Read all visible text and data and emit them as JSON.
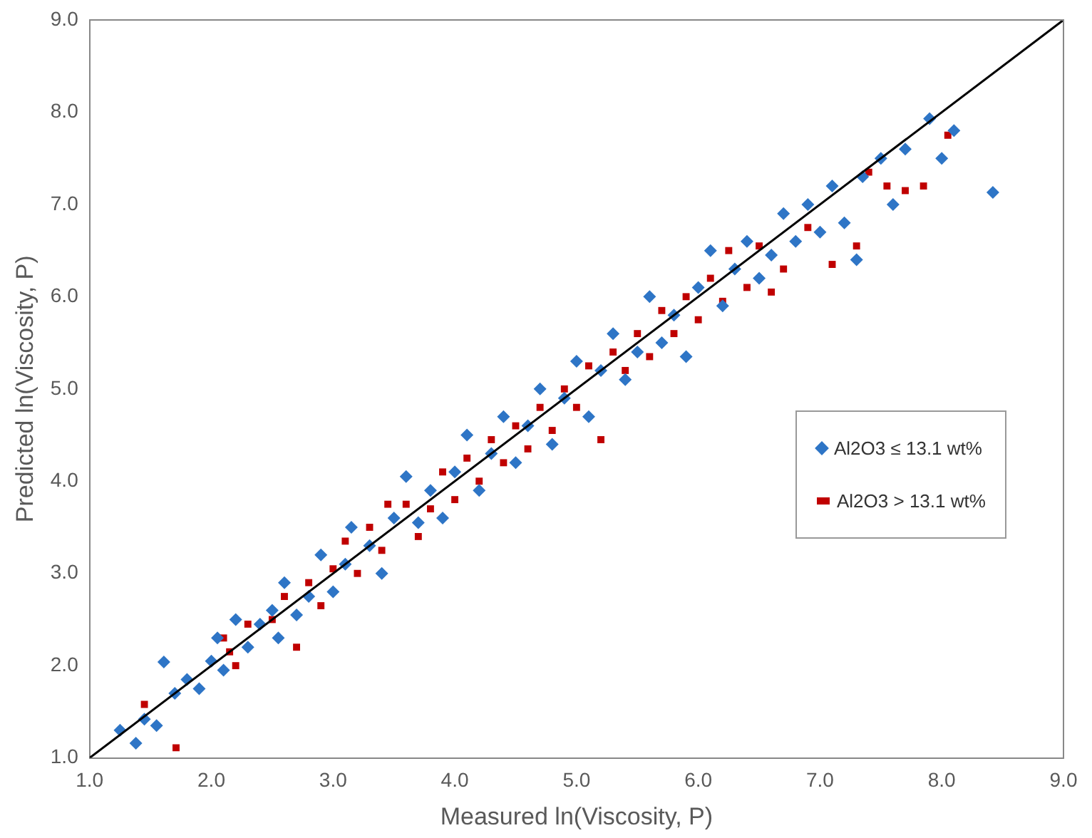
{
  "chart_data": {
    "type": "scatter",
    "xlabel": "Measured ln(Viscosity, P)",
    "ylabel": "Predicted ln(Viscosity, P)",
    "xlim": [
      1,
      9
    ],
    "ylim": [
      1,
      9
    ],
    "xticks": [
      {
        "value": 1,
        "label": "1.0"
      },
      {
        "value": 2,
        "label": "2.0"
      },
      {
        "value": 3,
        "label": "3.0"
      },
      {
        "value": 4,
        "label": "4.0"
      },
      {
        "value": 5,
        "label": "5.0"
      },
      {
        "value": 6,
        "label": "6.0"
      },
      {
        "value": 7,
        "label": "7.0"
      },
      {
        "value": 8,
        "label": "8.0"
      },
      {
        "value": 9,
        "label": "9.0"
      }
    ],
    "yticks": [
      {
        "value": 1,
        "label": "1.0"
      },
      {
        "value": 2,
        "label": "2.0"
      },
      {
        "value": 3,
        "label": "3.0"
      },
      {
        "value": 4,
        "label": "4.0"
      },
      {
        "value": 5,
        "label": "5.0"
      },
      {
        "value": 6,
        "label": "6.0"
      },
      {
        "value": 7,
        "label": "7.0"
      },
      {
        "value": 8,
        "label": "8.0"
      },
      {
        "value": 9,
        "label": "9.0"
      }
    ],
    "grid": false,
    "legend": "right",
    "series": [
      {
        "type": "line",
        "color": "#000000",
        "marker": "none",
        "x": [
          1,
          9
        ],
        "values": [
          1,
          9
        ]
      },
      {
        "name": "Al2O3 ≤ 13.1 wt%",
        "color": "#2e75c6",
        "marker": "diamond",
        "x": [
          1.25,
          1.38,
          1.45,
          1.55,
          1.61,
          1.7,
          1.8,
          1.9,
          2.0,
          2.05,
          2.1,
          2.2,
          2.3,
          2.4,
          2.5,
          2.55,
          2.6,
          2.7,
          2.8,
          2.9,
          3.0,
          3.1,
          3.15,
          3.3,
          3.4,
          3.5,
          3.6,
          3.7,
          3.8,
          3.9,
          4.0,
          4.1,
          4.2,
          4.3,
          4.4,
          4.5,
          4.6,
          4.7,
          4.8,
          4.9,
          5.0,
          5.1,
          5.2,
          5.3,
          5.4,
          5.5,
          5.6,
          5.7,
          5.8,
          5.9,
          6.0,
          6.1,
          6.2,
          6.3,
          6.4,
          6.5,
          6.6,
          6.7,
          6.8,
          6.9,
          7.0,
          7.1,
          7.2,
          7.3,
          7.35,
          7.5,
          7.6,
          7.7,
          7.9,
          8.0,
          8.1,
          8.42
        ],
        "values": [
          1.3,
          1.16,
          1.42,
          1.35,
          2.04,
          1.7,
          1.85,
          1.75,
          2.05,
          2.3,
          1.95,
          2.5,
          2.2,
          2.45,
          2.6,
          2.3,
          2.9,
          2.55,
          2.75,
          3.2,
          2.8,
          3.1,
          3.5,
          3.3,
          3.0,
          3.6,
          4.05,
          3.55,
          3.9,
          3.6,
          4.1,
          4.5,
          3.9,
          4.3,
          4.7,
          4.2,
          4.6,
          5.0,
          4.4,
          4.9,
          5.3,
          4.7,
          5.2,
          5.6,
          5.1,
          5.4,
          6.0,
          5.5,
          5.8,
          5.35,
          6.1,
          6.5,
          5.9,
          6.3,
          6.6,
          6.2,
          6.45,
          6.9,
          6.6,
          7.0,
          6.7,
          7.2,
          6.8,
          6.4,
          7.3,
          7.5,
          7.0,
          7.6,
          7.93,
          7.5,
          7.8,
          7.13
        ]
      },
      {
        "name": "Al2O3 > 13.1 wt%",
        "color": "#c00000",
        "marker": "square",
        "x": [
          1.45,
          1.71,
          2.15,
          2.1,
          2.2,
          2.3,
          2.5,
          2.6,
          2.7,
          2.8,
          2.9,
          3.0,
          3.1,
          3.2,
          3.3,
          3.4,
          3.45,
          3.6,
          3.7,
          3.8,
          3.9,
          4.0,
          4.1,
          4.2,
          4.3,
          4.4,
          4.5,
          4.6,
          4.7,
          4.8,
          4.9,
          5.0,
          5.1,
          5.2,
          5.3,
          5.4,
          5.5,
          5.6,
          5.7,
          5.8,
          5.9,
          6.0,
          6.1,
          6.2,
          6.25,
          6.4,
          6.5,
          6.6,
          6.7,
          6.9,
          7.1,
          7.3,
          7.4,
          7.55,
          7.7,
          7.85,
          8.05
        ],
        "values": [
          1.58,
          1.11,
          2.15,
          2.3,
          2.0,
          2.45,
          2.5,
          2.75,
          2.2,
          2.9,
          2.65,
          3.05,
          3.35,
          3.0,
          3.5,
          3.25,
          3.75,
          3.75,
          3.4,
          3.7,
          4.1,
          3.8,
          4.25,
          4.0,
          4.45,
          4.2,
          4.6,
          4.35,
          4.8,
          4.55,
          5.0,
          4.8,
          5.25,
          4.45,
          5.4,
          5.2,
          5.6,
          5.35,
          5.85,
          5.6,
          6.0,
          5.75,
          6.2,
          5.95,
          6.5,
          6.1,
          6.55,
          6.05,
          6.3,
          6.75,
          6.35,
          6.55,
          7.35,
          7.2,
          7.15,
          7.2,
          7.75
        ]
      }
    ]
  }
}
